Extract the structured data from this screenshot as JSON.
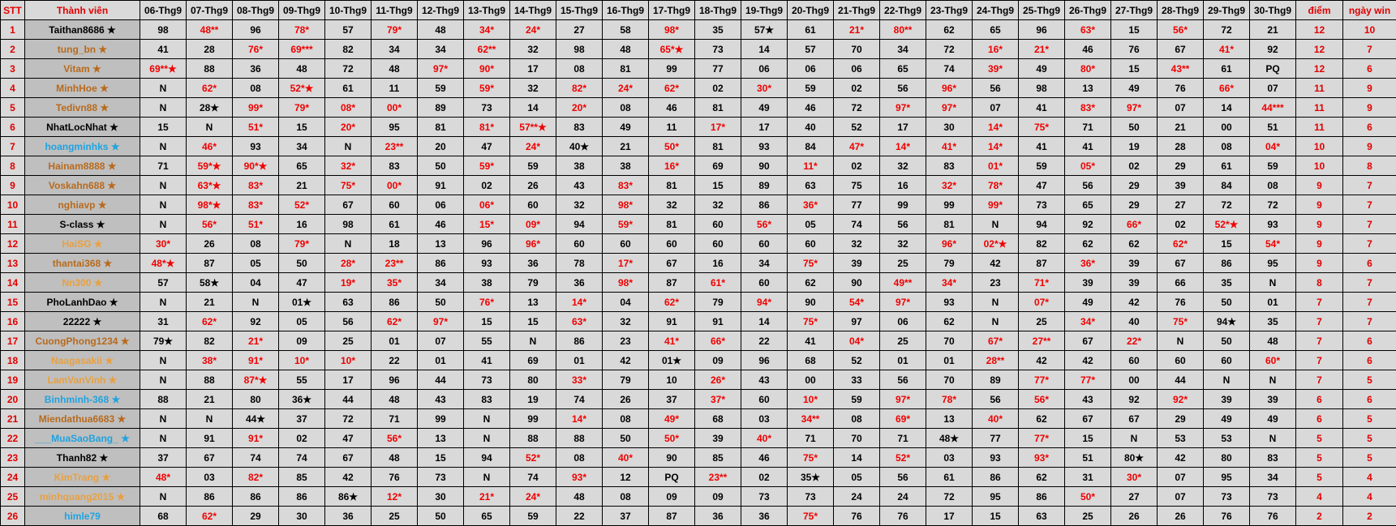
{
  "table": {
    "headers": [
      "STT",
      "Thành viên",
      "06-Thg9",
      "07-Thg9",
      "08-Thg9",
      "09-Thg9",
      "10-Thg9",
      "11-Thg9",
      "12-Thg9",
      "13-Thg9",
      "14-Thg9",
      "15-Thg9",
      "16-Thg9",
      "17-Thg9",
      "18-Thg9",
      "19-Thg9",
      "20-Thg9",
      "21-Thg9",
      "22-Thg9",
      "23-Thg9",
      "24-Thg9",
      "25-Thg9",
      "26-Thg9",
      "27-Thg9",
      "28-Thg9",
      "29-Thg9",
      "30-Thg9",
      "điểm",
      "ngày win"
    ],
    "rows": [
      {
        "stt": 1,
        "name": "Taithan8686 ★",
        "name_color": "#000000",
        "cells": [
          "98",
          "48**",
          "96",
          "78*",
          "57",
          "79*",
          "48",
          "34*",
          "24*",
          "27",
          "58",
          "98*",
          "35",
          "57★",
          "61",
          "21*",
          "80**",
          "62",
          "65",
          "96",
          "63*",
          "15",
          "56*",
          "72",
          "21"
        ],
        "diem": 12,
        "win": 10
      },
      {
        "stt": 2,
        "name": "tung_bn ★",
        "name_color": "#b86a1c",
        "cells": [
          "41",
          "28",
          "76*",
          "69***",
          "82",
          "34",
          "34",
          "62**",
          "32",
          "98",
          "48",
          "65*★",
          "73",
          "14",
          "57",
          "70",
          "34",
          "72",
          "16*",
          "21*",
          "46",
          "76",
          "67",
          "41*",
          "92"
        ],
        "diem": 12,
        "win": 7
      },
      {
        "stt": 3,
        "name": "Vitam ★",
        "name_color": "#b86a1c",
        "cells": [
          "69**★",
          "88",
          "36",
          "48",
          "72",
          "48",
          "97*",
          "90*",
          "17",
          "08",
          "81",
          "99",
          "77",
          "06",
          "06",
          "06",
          "65",
          "74",
          "39*",
          "49",
          "80*",
          "15",
          "43**",
          "61",
          "PQ"
        ],
        "diem": 12,
        "win": 6
      },
      {
        "stt": 4,
        "name": "MinhHoe ★",
        "name_color": "#b86a1c",
        "cells": [
          "N",
          "62*",
          "08",
          "52*★",
          "61",
          "11",
          "59",
          "59*",
          "32",
          "82*",
          "24*",
          "62*",
          "02",
          "30*",
          "59",
          "02",
          "56",
          "96*",
          "56",
          "98",
          "13",
          "49",
          "76",
          "66*",
          "07"
        ],
        "diem": 11,
        "win": 9
      },
      {
        "stt": 5,
        "name": "Tedivn88 ★",
        "name_color": "#b86a1c",
        "cells": [
          "N",
          "28★",
          "99*",
          "79*",
          "08*",
          "00*",
          "89",
          "73",
          "14",
          "20*",
          "08",
          "46",
          "81",
          "49",
          "46",
          "72",
          "97*",
          "97*",
          "07",
          "41",
          "83*",
          "97*",
          "07",
          "14",
          "44***"
        ],
        "diem": 11,
        "win": 9
      },
      {
        "stt": 6,
        "name": "NhatLocNhat ★",
        "name_color": "#000000",
        "cells": [
          "15",
          "N",
          "51*",
          "15",
          "20*",
          "95",
          "81",
          "81*",
          "57**★",
          "83",
          "49",
          "11",
          "17*",
          "17",
          "40",
          "52",
          "17",
          "30",
          "14*",
          "75*",
          "71",
          "50",
          "21",
          "00",
          "51"
        ],
        "diem": 11,
        "win": 6
      },
      {
        "stt": 7,
        "name": "hoangminhks ★",
        "name_color": "#1fa3e0",
        "cells": [
          "N",
          "46*",
          "93",
          "34",
          "N",
          "23**",
          "20",
          "47",
          "24*",
          "40★",
          "21",
          "50*",
          "81",
          "93",
          "84",
          "47*",
          "14*",
          "41*",
          "14*",
          "41",
          "41",
          "19",
          "28",
          "08",
          "04*"
        ],
        "diem": 10,
        "win": 9
      },
      {
        "stt": 8,
        "name": "Hainam8888 ★",
        "name_color": "#b86a1c",
        "cells": [
          "71",
          "59*★",
          "90*★",
          "65",
          "32*",
          "83",
          "50",
          "59*",
          "59",
          "38",
          "38",
          "16*",
          "69",
          "90",
          "11*",
          "02",
          "32",
          "83",
          "01*",
          "59",
          "05*",
          "02",
          "29",
          "61",
          "59"
        ],
        "diem": 10,
        "win": 8
      },
      {
        "stt": 9,
        "name": "Voskahn688 ★",
        "name_color": "#b86a1c",
        "cells": [
          "N",
          "63*★",
          "83*",
          "21",
          "75*",
          "00*",
          "91",
          "02",
          "26",
          "43",
          "83*",
          "81",
          "15",
          "89",
          "63",
          "75",
          "16",
          "32*",
          "78*",
          "47",
          "56",
          "29",
          "39",
          "84",
          "08"
        ],
        "diem": 9,
        "win": 7
      },
      {
        "stt": 10,
        "name": "nghiavp ★",
        "name_color": "#b86a1c",
        "cells": [
          "N",
          "98*★",
          "83*",
          "52*",
          "67",
          "60",
          "06",
          "06*",
          "60",
          "32",
          "98*",
          "32",
          "32",
          "86",
          "36*",
          "77",
          "99",
          "99",
          "99*",
          "73",
          "65",
          "29",
          "27",
          "72",
          "72"
        ],
        "diem": 9,
        "win": 7
      },
      {
        "stt": 11,
        "name": "S-class ★",
        "name_color": "#000000",
        "cells": [
          "N",
          "56*",
          "51*",
          "16",
          "98",
          "61",
          "46",
          "15*",
          "09*",
          "94",
          "59*",
          "81",
          "60",
          "56*",
          "05",
          "74",
          "56",
          "81",
          "N",
          "94",
          "92",
          "66*",
          "02",
          "52*★",
          "93"
        ],
        "diem": 9,
        "win": 7
      },
      {
        "stt": 12,
        "name": "HaiSG ★",
        "name_color": "#e8a040",
        "cells": [
          "30*",
          "26",
          "08",
          "79*",
          "N",
          "18",
          "13",
          "96",
          "96*",
          "60",
          "60",
          "60",
          "60",
          "60",
          "60",
          "32",
          "32",
          "96*",
          "02*★",
          "82",
          "62",
          "62",
          "62*",
          "15",
          "54*"
        ],
        "diem": 9,
        "win": 7
      },
      {
        "stt": 13,
        "name": "thantai368 ★",
        "name_color": "#b86a1c",
        "cells": [
          "48*★",
          "87",
          "05",
          "50",
          "28*",
          "23**",
          "86",
          "93",
          "36",
          "78",
          "17*",
          "67",
          "16",
          "34",
          "75*",
          "39",
          "25",
          "79",
          "42",
          "87",
          "36*",
          "39",
          "67",
          "86",
          "95"
        ],
        "diem": 9,
        "win": 6
      },
      {
        "stt": 14,
        "name": "Nn300 ★",
        "name_color": "#e8a040",
        "cells": [
          "57",
          "58★",
          "04",
          "47",
          "19*",
          "35*",
          "34",
          "38",
          "79",
          "36",
          "98*",
          "87",
          "61*",
          "60",
          "62",
          "90",
          "49**",
          "34*",
          "23",
          "71*",
          "39",
          "39",
          "66",
          "35",
          "N"
        ],
        "diem": 8,
        "win": 7
      },
      {
        "stt": 15,
        "name": "PhoLanhDao ★",
        "name_color": "#000000",
        "cells": [
          "N",
          "21",
          "N",
          "01★",
          "63",
          "86",
          "50",
          "76*",
          "13",
          "14*",
          "04",
          "62*",
          "79",
          "94*",
          "90",
          "54*",
          "97*",
          "93",
          "N",
          "07*",
          "49",
          "42",
          "76",
          "50",
          "01"
        ],
        "diem": 7,
        "win": 7
      },
      {
        "stt": 16,
        "name": "22222 ★",
        "name_color": "#000000",
        "cells": [
          "31",
          "62*",
          "92",
          "05",
          "56",
          "62*",
          "97*",
          "15",
          "15",
          "63*",
          "32",
          "91",
          "91",
          "14",
          "75*",
          "97",
          "06",
          "62",
          "N",
          "25",
          "34*",
          "40",
          "75*",
          "94★",
          "35"
        ],
        "diem": 7,
        "win": 7
      },
      {
        "stt": 17,
        "name": "CuongPhong1234 ★",
        "name_color": "#b86a1c",
        "cells": [
          "79★",
          "82",
          "21*",
          "09",
          "25",
          "01",
          "07",
          "55",
          "N",
          "86",
          "23",
          "41*",
          "66*",
          "22",
          "41",
          "04*",
          "25",
          "70",
          "67*",
          "27**",
          "67",
          "22*",
          "N",
          "50",
          "48"
        ],
        "diem": 7,
        "win": 6
      },
      {
        "stt": 18,
        "name": "Naagasakii ★",
        "name_color": "#e8a040",
        "cells": [
          "N",
          "38*",
          "91*",
          "10*",
          "10*",
          "22",
          "01",
          "41",
          "69",
          "01",
          "42",
          "01★",
          "09",
          "96",
          "68",
          "52",
          "01",
          "01",
          "28**",
          "42",
          "42",
          "60",
          "60",
          "60",
          "60*"
        ],
        "diem": 7,
        "win": 6
      },
      {
        "stt": 19,
        "name": "LamVanVinh ★",
        "name_color": "#e8a040",
        "cells": [
          "N",
          "88",
          "87*★",
          "55",
          "17",
          "96",
          "44",
          "73",
          "80",
          "33*",
          "79",
          "10",
          "26*",
          "43",
          "00",
          "33",
          "56",
          "70",
          "89",
          "77*",
          "77*",
          "00",
          "44",
          "N",
          "N"
        ],
        "diem": 7,
        "win": 5
      },
      {
        "stt": 20,
        "name": "Binhminh-368 ★",
        "name_color": "#1fa3e0",
        "cells": [
          "88",
          "21",
          "80",
          "36★",
          "44",
          "48",
          "43",
          "83",
          "19",
          "74",
          "26",
          "37",
          "37*",
          "60",
          "10*",
          "59",
          "97*",
          "78*",
          "56",
          "56*",
          "43",
          "92",
          "92*",
          "39",
          "39"
        ],
        "diem": 6,
        "win": 6
      },
      {
        "stt": 21,
        "name": "Miendathua6683 ★",
        "name_color": "#b86a1c",
        "cells": [
          "N",
          "N",
          "44★",
          "37",
          "72",
          "71",
          "99",
          "N",
          "99",
          "14*",
          "08",
          "49*",
          "68",
          "03",
          "34**",
          "08",
          "69*",
          "13",
          "40*",
          "62",
          "67",
          "67",
          "29",
          "49",
          "49"
        ],
        "diem": 6,
        "win": 5
      },
      {
        "stt": 22,
        "name": "___MuaSaoBang_ ★",
        "name_color": "#1fa3e0",
        "cells": [
          "N",
          "91",
          "91*",
          "02",
          "47",
          "56*",
          "13",
          "N",
          "88",
          "88",
          "50",
          "50*",
          "39",
          "40*",
          "71",
          "70",
          "71",
          "48★",
          "77",
          "77*",
          "15",
          "N",
          "53",
          "53",
          "N"
        ],
        "diem": 5,
        "win": 5
      },
      {
        "stt": 23,
        "name": "Thanh82 ★",
        "name_color": "#000000",
        "cells": [
          "37",
          "67",
          "74",
          "74",
          "67",
          "48",
          "15",
          "94",
          "52*",
          "08",
          "40*",
          "90",
          "85",
          "46",
          "75*",
          "14",
          "52*",
          "03",
          "93",
          "93*",
          "51",
          "80★",
          "42",
          "80",
          "83"
        ],
        "diem": 5,
        "win": 5
      },
      {
        "stt": 24,
        "name": "KimTrang ★",
        "name_color": "#e8a040",
        "cells": [
          "48*",
          "03",
          "82*",
          "85",
          "42",
          "76",
          "73",
          "N",
          "74",
          "93*",
          "12",
          "PQ",
          "23**",
          "02",
          "35★",
          "05",
          "56",
          "61",
          "86",
          "62",
          "31",
          "30*",
          "07",
          "95",
          "34"
        ],
        "diem": 5,
        "win": 4
      },
      {
        "stt": 25,
        "name": "minhquang2015 ★",
        "name_color": "#e8a040",
        "cells": [
          "N",
          "86",
          "86",
          "86",
          "86★",
          "12*",
          "30",
          "21*",
          "24*",
          "48",
          "08",
          "09",
          "09",
          "73",
          "73",
          "24",
          "24",
          "72",
          "95",
          "86",
          "50*",
          "27",
          "07",
          "73",
          "73"
        ],
        "diem": 4,
        "win": 4
      },
      {
        "stt": 26,
        "name": "himle79",
        "name_color": "#1fa3e0",
        "cells": [
          "68",
          "62*",
          "29",
          "30",
          "36",
          "25",
          "50",
          "65",
          "59",
          "22",
          "37",
          "87",
          "36",
          "36",
          "75*",
          "76",
          "76",
          "17",
          "15",
          "63",
          "25",
          "26",
          "26",
          "76",
          "76"
        ],
        "diem": 2,
        "win": 2
      }
    ]
  }
}
